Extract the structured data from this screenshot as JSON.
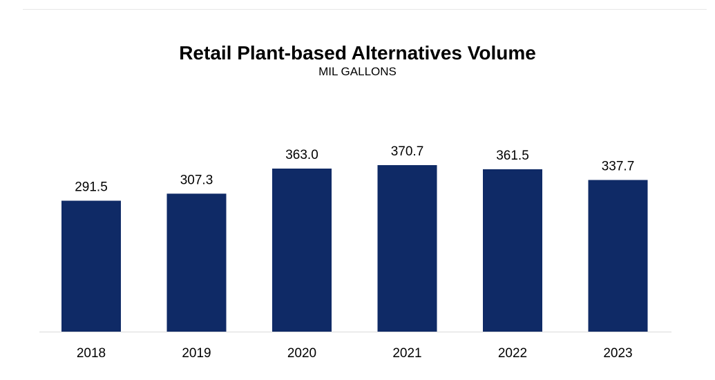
{
  "colors": {
    "bar": "#0f2a66",
    "axis_line": "#d9d9d9",
    "text": "#000000",
    "background": "#ffffff"
  },
  "chart_data": {
    "type": "bar",
    "title": "Retail Plant-based Alternatives Volume",
    "subtitle": "MIL GALLONS",
    "xlabel": "",
    "ylabel": "",
    "categories": [
      "2018",
      "2019",
      "2020",
      "2021",
      "2022",
      "2023"
    ],
    "values": [
      291.5,
      307.3,
      363.0,
      370.7,
      361.5,
      337.7
    ],
    "data_labels": [
      "291.5",
      "307.3",
      "363.0",
      "370.7",
      "361.5",
      "337.7"
    ],
    "ylim": [
      0,
      450
    ],
    "grid": false,
    "legend": "none"
  }
}
